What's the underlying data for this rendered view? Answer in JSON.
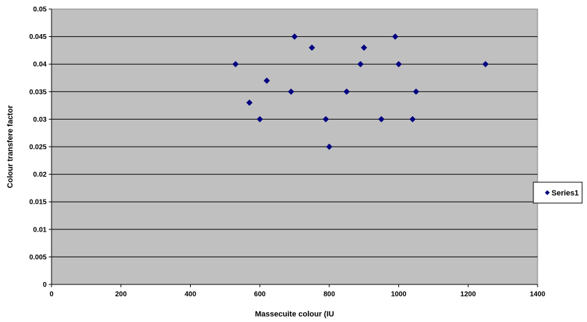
{
  "chart_data": {
    "type": "scatter",
    "title": "",
    "xlabel": "Massecuite colour (IU",
    "ylabel": "Colour transfere factor",
    "xlim": [
      0,
      1400
    ],
    "ylim": [
      0,
      0.05
    ],
    "x_ticks": [
      "0",
      "200",
      "400",
      "600",
      "800",
      "1000",
      "1200",
      "1400"
    ],
    "y_ticks": [
      "0",
      "0.005",
      "0.01",
      "0.015",
      "0.02",
      "0.025",
      "0.03",
      "0.035",
      "0.04",
      "0.045",
      "0.05"
    ],
    "grid": "horizontal",
    "legend_position": "right",
    "colors": {
      "plot_background": "#c0c0c0",
      "marker": "#000080",
      "gridline": "#000000"
    },
    "series": [
      {
        "name": "Series1",
        "marker": "diamond",
        "points": [
          {
            "x": 530,
            "y": 0.04
          },
          {
            "x": 570,
            "y": 0.033
          },
          {
            "x": 600,
            "y": 0.03
          },
          {
            "x": 620,
            "y": 0.037
          },
          {
            "x": 690,
            "y": 0.035
          },
          {
            "x": 700,
            "y": 0.045
          },
          {
            "x": 750,
            "y": 0.043
          },
          {
            "x": 790,
            "y": 0.03
          },
          {
            "x": 800,
            "y": 0.025
          },
          {
            "x": 850,
            "y": 0.035
          },
          {
            "x": 890,
            "y": 0.04
          },
          {
            "x": 900,
            "y": 0.043
          },
          {
            "x": 950,
            "y": 0.03
          },
          {
            "x": 990,
            "y": 0.045
          },
          {
            "x": 1000,
            "y": 0.04
          },
          {
            "x": 1040,
            "y": 0.03
          },
          {
            "x": 1050,
            "y": 0.035
          },
          {
            "x": 1250,
            "y": 0.04
          }
        ]
      }
    ]
  }
}
